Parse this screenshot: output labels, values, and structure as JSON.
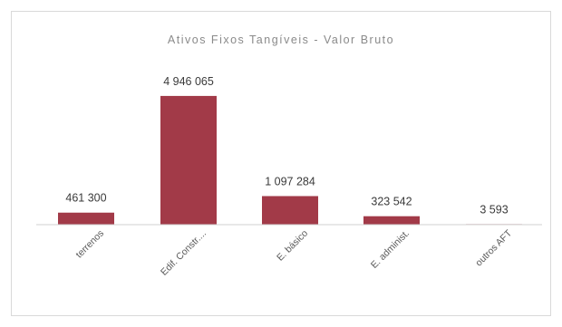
{
  "chart_data": {
    "type": "bar",
    "title": "Ativos Fixos Tangíveis - Valor Bruto",
    "categories": [
      "terrenos",
      "Edif. Constr....",
      "E. básico",
      "E. administ.",
      "outros AFT"
    ],
    "values": [
      461300,
      4946065,
      1097284,
      323542,
      3593
    ],
    "value_labels": [
      "461 300",
      "4 946 065",
      "1 097 284",
      "323 542",
      "3 593"
    ],
    "ylim": [
      0,
      5500000
    ],
    "grid": false,
    "legend": "none",
    "colors": {
      "bar": "#a23a48",
      "axis": "#d0d0d0"
    }
  }
}
